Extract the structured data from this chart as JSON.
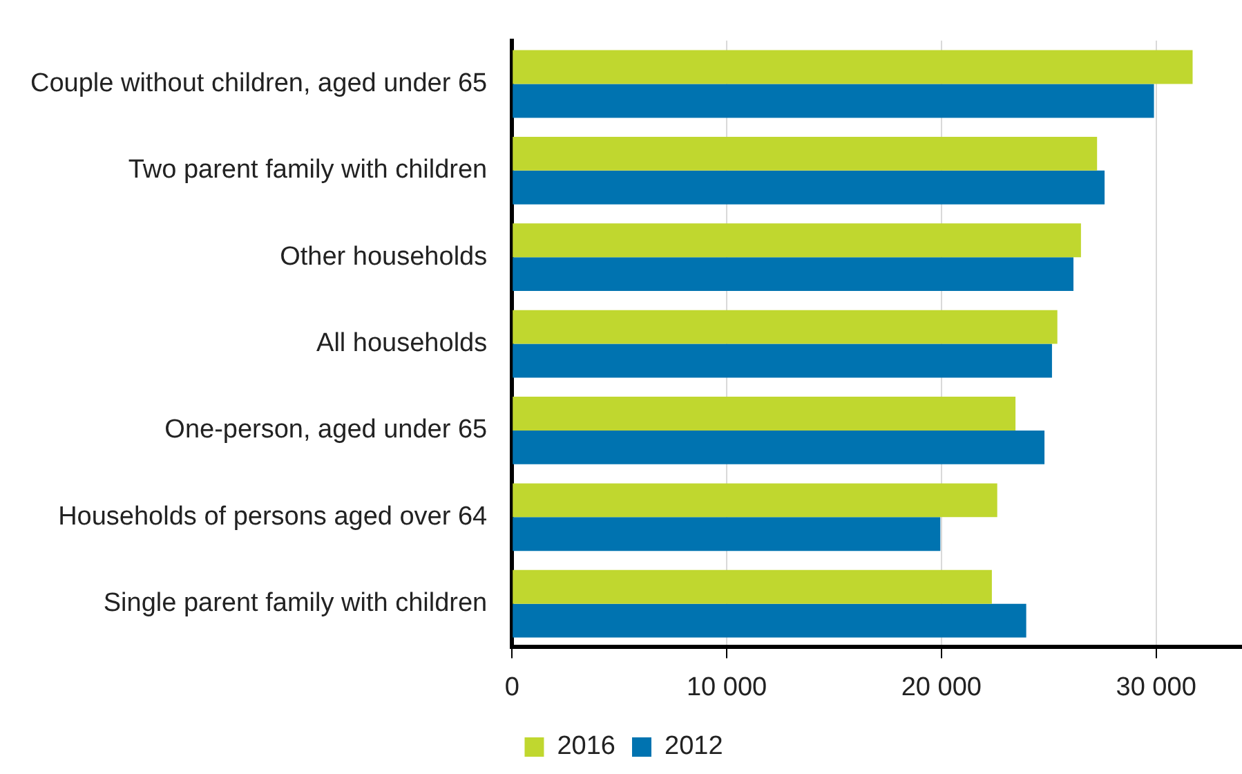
{
  "chart_data": {
    "type": "bar",
    "orientation": "horizontal",
    "categories": [
      "Couple without children, aged under 65",
      "Two parent family with children",
      "Other households",
      "All households",
      "One-person, aged under 65",
      "Households of persons aged over 64",
      "Single parent family with children"
    ],
    "series": [
      {
        "name": "2016",
        "color": "#c0d72f",
        "values": [
          31700,
          27250,
          26500,
          25400,
          23450,
          22600,
          22350
        ]
      },
      {
        "name": "2012",
        "color": "#0073b0",
        "values": [
          29900,
          27600,
          26150,
          25150,
          24800,
          19950,
          23950
        ]
      }
    ],
    "xlim": [
      0,
      34000
    ],
    "xticks": [
      0,
      {
        "value": 10000,
        "label": "10 000"
      },
      {
        "value": 20000,
        "label": "20 000"
      },
      {
        "value": 30000,
        "label": "30 000"
      }
    ],
    "grid": "x",
    "legend": "bottom"
  }
}
